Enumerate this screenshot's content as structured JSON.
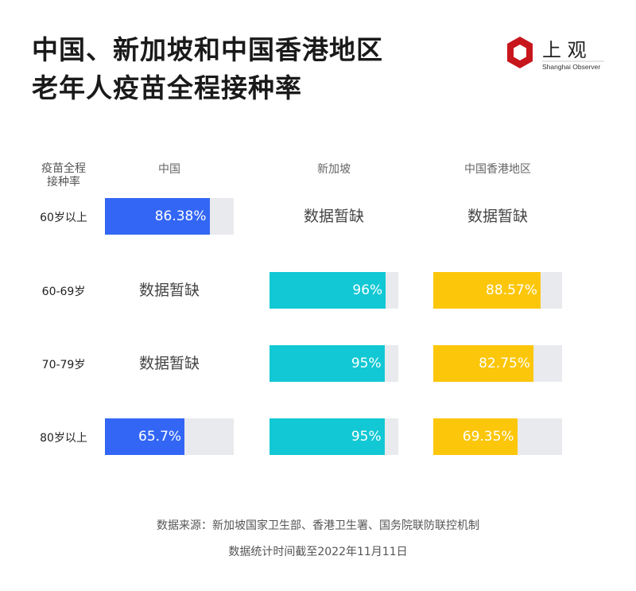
{
  "title_lines": [
    "中国、新加坡和中国香港地区",
    "老年人疫苗全程接种率"
  ],
  "logo": {
    "text_cn": "上观",
    "text_en": "Shanghai Observer",
    "color": "#c8161d"
  },
  "chart_data": {
    "type": "bar",
    "row_header": [
      "疫苗全程",
      "接种率"
    ],
    "categories": [
      "60岁以上",
      "60-69岁",
      "70-79岁",
      "80岁以上"
    ],
    "series": [
      {
        "name": "中国",
        "color": "#3366f5",
        "values": [
          86.38,
          null,
          null,
          65.7
        ],
        "labels": [
          "86.38%",
          "数据暂缺",
          "数据暂缺",
          "65.7%"
        ]
      },
      {
        "name": "新加坡",
        "color": "#12c8d4",
        "values": [
          null,
          96,
          95,
          95
        ],
        "labels": [
          "数据暂缺",
          "96%",
          "95%",
          "95%"
        ]
      },
      {
        "name": "中国香港地区",
        "color": "#fcc60a",
        "values": [
          null,
          88.57,
          82.75,
          69.35
        ],
        "labels": [
          "数据暂缺",
          "88.57%",
          "82.75%",
          "69.35%"
        ]
      }
    ],
    "track_color": "#e9eaee",
    "unit": "%"
  },
  "footer": {
    "source": "数据来源：新加坡国家卫生部、香港卫生署、国务院联防联控机制",
    "date": "数据统计时间截至2022年11月11日"
  }
}
